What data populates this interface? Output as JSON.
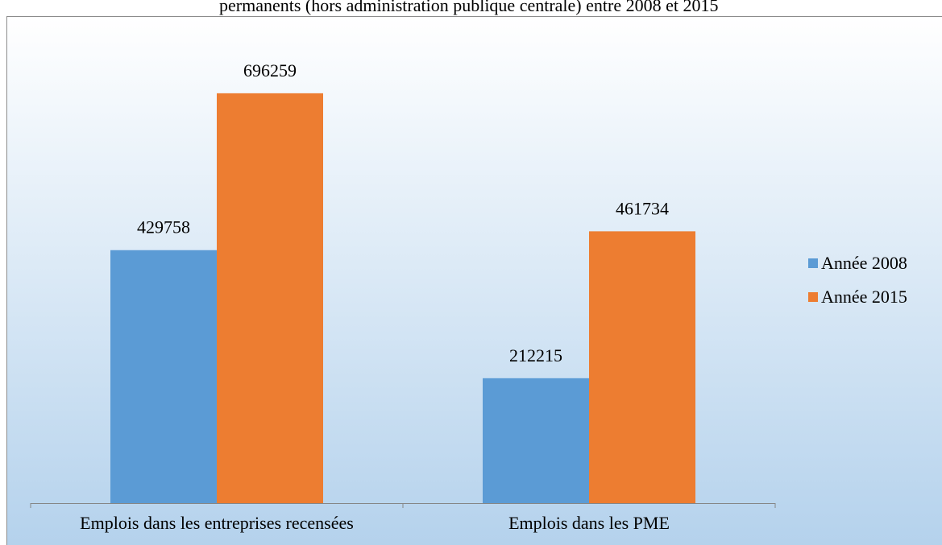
{
  "chart_data": {
    "type": "bar",
    "title": "permanents (hors administration publique centrale) entre 2008 et 2015",
    "categories": [
      "Emplois dans les entreprises recensées",
      "Emplois dans les PME"
    ],
    "series": [
      {
        "name": "Année 2008",
        "color": "#5b9bd5",
        "values": [
          429758,
          212215
        ]
      },
      {
        "name": "Année 2015",
        "color": "#ed7d31",
        "values": [
          696259,
          461734
        ]
      }
    ],
    "ylim": [
      0,
      800000
    ],
    "legend": "right"
  }
}
